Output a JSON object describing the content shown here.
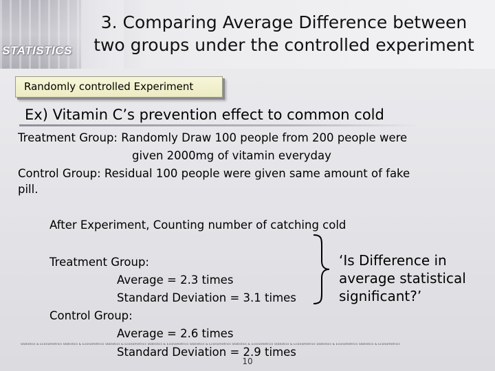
{
  "header": {
    "brand": "STATISTICS",
    "title_line1": "3. Comparing Average Difference between",
    "title_line2": "two groups under the controlled experiment"
  },
  "section_tab": "Randomly controlled Experiment",
  "example_heading": "Ex) Vitamin C’s prevention effect to common cold",
  "body": {
    "treatment_line1": "Treatment Group: Randomly Draw 100 people from 200 people were",
    "treatment_line2": "given 2000mg of vitamin everyday",
    "control_line1": "Control Group: Residual 100 people were given same amount of fake",
    "control_line2": "pill.",
    "after": "After Experiment, Counting number of catching cold"
  },
  "results": {
    "treatment_label": "Treatment Group:",
    "treatment_average": "Average = 2.3 times",
    "treatment_sd": "Standard Deviation = 3.1 times",
    "control_label": "Control Group:",
    "control_average": "Average = 2.6 times",
    "control_sd": "Standard Deviation = 2.9 times"
  },
  "question": "‘Is Difference in average statistical significant?’",
  "footer": {
    "strip": "Statistics & Econometrics Statistics & Econometrics Statistics & Econometrics Statistics & Econometrics Statistics & Econometrics Statistics & Econometrics Statistics & Econometrics Statistics & Econometrics Statistics & Econometrics",
    "page_number": "10"
  },
  "colors": {
    "background": "#e6e6ea",
    "tab_fill": "#f2f1cf",
    "text": "#000000"
  }
}
